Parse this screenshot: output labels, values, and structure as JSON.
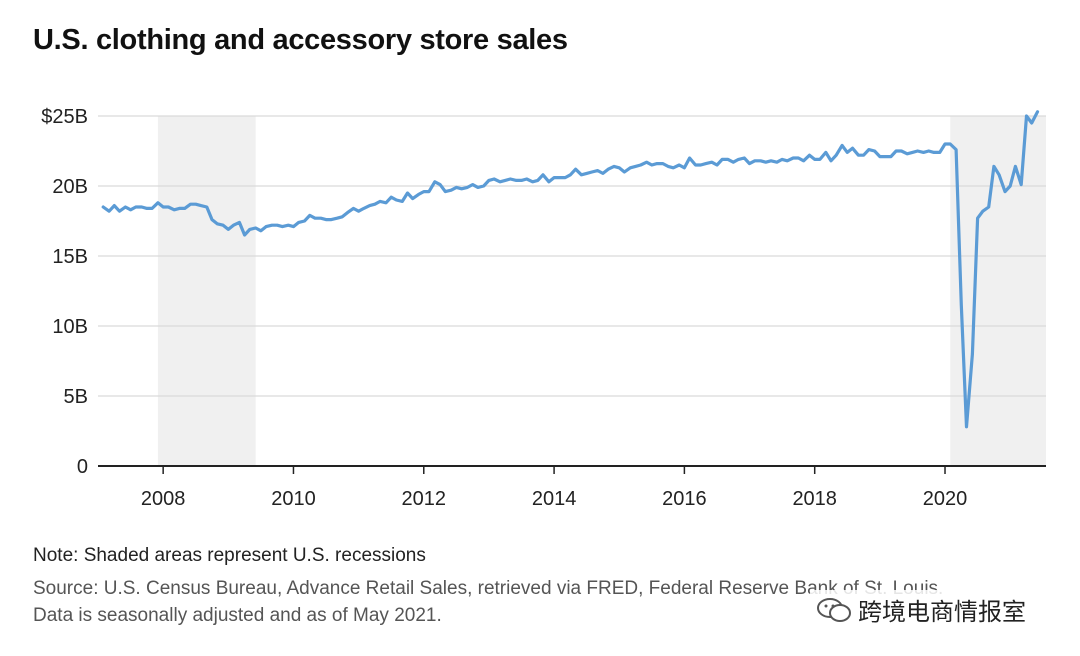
{
  "chart_data": {
    "type": "line",
    "title": "U.S. clothing and accessory store sales",
    "xlabel": "",
    "ylabel": "",
    "xlim": [
      2007.0,
      2021.55
    ],
    "ylim": [
      0,
      25
    ],
    "y_ticks": [
      0,
      5,
      10,
      15,
      20,
      25
    ],
    "y_tick_labels": [
      "0",
      "5B",
      "10B",
      "15B",
      "20B",
      "$25B"
    ],
    "x_ticks": [
      2008,
      2010,
      2012,
      2014,
      2016,
      2018,
      2020
    ],
    "x_tick_labels": [
      "2008",
      "2010",
      "2012",
      "2014",
      "2016",
      "2018",
      "2020"
    ],
    "recessions": [
      {
        "start": 2007.92,
        "end": 2009.42
      },
      {
        "start": 2020.08,
        "end": 2021.55
      }
    ],
    "series": [
      {
        "name": "Clothing and accessory store sales",
        "color": "#5b9bd5",
        "points": [
          [
            2007.08,
            18.5
          ],
          [
            2007.17,
            18.2
          ],
          [
            2007.25,
            18.6
          ],
          [
            2007.33,
            18.2
          ],
          [
            2007.42,
            18.5
          ],
          [
            2007.5,
            18.3
          ],
          [
            2007.58,
            18.5
          ],
          [
            2007.67,
            18.5
          ],
          [
            2007.75,
            18.4
          ],
          [
            2007.83,
            18.4
          ],
          [
            2007.92,
            18.8
          ],
          [
            2008.0,
            18.5
          ],
          [
            2008.08,
            18.5
          ],
          [
            2008.17,
            18.3
          ],
          [
            2008.25,
            18.4
          ],
          [
            2008.33,
            18.4
          ],
          [
            2008.42,
            18.7
          ],
          [
            2008.5,
            18.7
          ],
          [
            2008.58,
            18.6
          ],
          [
            2008.67,
            18.5
          ],
          [
            2008.75,
            17.6
          ],
          [
            2008.83,
            17.3
          ],
          [
            2008.92,
            17.2
          ],
          [
            2009.0,
            16.9
          ],
          [
            2009.08,
            17.2
          ],
          [
            2009.17,
            17.4
          ],
          [
            2009.25,
            16.5
          ],
          [
            2009.33,
            16.9
          ],
          [
            2009.42,
            17.0
          ],
          [
            2009.5,
            16.8
          ],
          [
            2009.58,
            17.1
          ],
          [
            2009.67,
            17.2
          ],
          [
            2009.75,
            17.2
          ],
          [
            2009.83,
            17.1
          ],
          [
            2009.92,
            17.2
          ],
          [
            2010.0,
            17.1
          ],
          [
            2010.08,
            17.4
          ],
          [
            2010.17,
            17.5
          ],
          [
            2010.25,
            17.9
          ],
          [
            2010.33,
            17.7
          ],
          [
            2010.42,
            17.7
          ],
          [
            2010.5,
            17.6
          ],
          [
            2010.58,
            17.6
          ],
          [
            2010.67,
            17.7
          ],
          [
            2010.75,
            17.8
          ],
          [
            2010.83,
            18.1
          ],
          [
            2010.92,
            18.4
          ],
          [
            2011.0,
            18.2
          ],
          [
            2011.08,
            18.4
          ],
          [
            2011.17,
            18.6
          ],
          [
            2011.25,
            18.7
          ],
          [
            2011.33,
            18.9
          ],
          [
            2011.42,
            18.8
          ],
          [
            2011.5,
            19.2
          ],
          [
            2011.58,
            19.0
          ],
          [
            2011.67,
            18.9
          ],
          [
            2011.75,
            19.5
          ],
          [
            2011.83,
            19.1
          ],
          [
            2011.92,
            19.4
          ],
          [
            2012.0,
            19.6
          ],
          [
            2012.08,
            19.6
          ],
          [
            2012.17,
            20.3
          ],
          [
            2012.25,
            20.1
          ],
          [
            2012.33,
            19.6
          ],
          [
            2012.42,
            19.7
          ],
          [
            2012.5,
            19.9
          ],
          [
            2012.58,
            19.8
          ],
          [
            2012.67,
            19.9
          ],
          [
            2012.75,
            20.1
          ],
          [
            2012.83,
            19.9
          ],
          [
            2012.92,
            20.0
          ],
          [
            2013.0,
            20.4
          ],
          [
            2013.08,
            20.5
          ],
          [
            2013.17,
            20.3
          ],
          [
            2013.25,
            20.4
          ],
          [
            2013.33,
            20.5
          ],
          [
            2013.42,
            20.4
          ],
          [
            2013.5,
            20.4
          ],
          [
            2013.58,
            20.5
          ],
          [
            2013.67,
            20.3
          ],
          [
            2013.75,
            20.4
          ],
          [
            2013.83,
            20.8
          ],
          [
            2013.92,
            20.3
          ],
          [
            2014.0,
            20.6
          ],
          [
            2014.08,
            20.6
          ],
          [
            2014.17,
            20.6
          ],
          [
            2014.25,
            20.8
          ],
          [
            2014.33,
            21.2
          ],
          [
            2014.42,
            20.8
          ],
          [
            2014.5,
            20.9
          ],
          [
            2014.58,
            21.0
          ],
          [
            2014.67,
            21.1
          ],
          [
            2014.75,
            20.9
          ],
          [
            2014.83,
            21.2
          ],
          [
            2014.92,
            21.4
          ],
          [
            2015.0,
            21.3
          ],
          [
            2015.08,
            21.0
          ],
          [
            2015.17,
            21.3
          ],
          [
            2015.25,
            21.4
          ],
          [
            2015.33,
            21.5
          ],
          [
            2015.42,
            21.7
          ],
          [
            2015.5,
            21.5
          ],
          [
            2015.58,
            21.6
          ],
          [
            2015.67,
            21.6
          ],
          [
            2015.75,
            21.4
          ],
          [
            2015.83,
            21.3
          ],
          [
            2015.92,
            21.5
          ],
          [
            2016.0,
            21.3
          ],
          [
            2016.08,
            22.0
          ],
          [
            2016.17,
            21.5
          ],
          [
            2016.25,
            21.5
          ],
          [
            2016.33,
            21.6
          ],
          [
            2016.42,
            21.7
          ],
          [
            2016.5,
            21.5
          ],
          [
            2016.58,
            21.9
          ],
          [
            2016.67,
            21.9
          ],
          [
            2016.75,
            21.7
          ],
          [
            2016.83,
            21.9
          ],
          [
            2016.92,
            22.0
          ],
          [
            2017.0,
            21.6
          ],
          [
            2017.08,
            21.8
          ],
          [
            2017.17,
            21.8
          ],
          [
            2017.25,
            21.7
          ],
          [
            2017.33,
            21.8
          ],
          [
            2017.42,
            21.7
          ],
          [
            2017.5,
            21.9
          ],
          [
            2017.58,
            21.8
          ],
          [
            2017.67,
            22.0
          ],
          [
            2017.75,
            22.0
          ],
          [
            2017.83,
            21.8
          ],
          [
            2017.92,
            22.2
          ],
          [
            2018.0,
            21.9
          ],
          [
            2018.08,
            21.9
          ],
          [
            2018.17,
            22.4
          ],
          [
            2018.25,
            21.8
          ],
          [
            2018.33,
            22.2
          ],
          [
            2018.42,
            22.9
          ],
          [
            2018.5,
            22.4
          ],
          [
            2018.58,
            22.7
          ],
          [
            2018.67,
            22.2
          ],
          [
            2018.75,
            22.2
          ],
          [
            2018.83,
            22.6
          ],
          [
            2018.92,
            22.5
          ],
          [
            2019.0,
            22.1
          ],
          [
            2019.08,
            22.1
          ],
          [
            2019.17,
            22.1
          ],
          [
            2019.25,
            22.5
          ],
          [
            2019.33,
            22.5
          ],
          [
            2019.42,
            22.3
          ],
          [
            2019.5,
            22.4
          ],
          [
            2019.58,
            22.5
          ],
          [
            2019.67,
            22.4
          ],
          [
            2019.75,
            22.5
          ],
          [
            2019.83,
            22.4
          ],
          [
            2019.92,
            22.4
          ],
          [
            2020.0,
            23.0
          ],
          [
            2020.08,
            23.0
          ],
          [
            2020.17,
            22.6
          ],
          [
            2020.25,
            11.5
          ],
          [
            2020.33,
            2.8
          ],
          [
            2020.42,
            8.0
          ],
          [
            2020.5,
            17.7
          ],
          [
            2020.58,
            18.2
          ],
          [
            2020.67,
            18.5
          ],
          [
            2020.75,
            21.4
          ],
          [
            2020.83,
            20.8
          ],
          [
            2020.92,
            19.6
          ],
          [
            2021.0,
            20.0
          ],
          [
            2021.08,
            21.4
          ],
          [
            2021.17,
            20.1
          ],
          [
            2021.25,
            25.0
          ],
          [
            2021.33,
            24.5
          ],
          [
            2021.42,
            25.3
          ]
        ]
      }
    ]
  },
  "page": {
    "title": "U.S. clothing and accessory store sales",
    "note": "Note: Shaded areas represent U.S. recessions",
    "source": "Source: U.S. Census Bureau, Advance Retail Sales, retrieved via FRED, Federal Reserve Bank of St. Louis. Data is seasonally adjusted and as of May 2021.",
    "watermark": "跨境电商情报室"
  },
  "colors": {
    "line": "#5b9bd5",
    "recession_shade": "#f0f0f0",
    "grid": "#d9d9d9",
    "axis": "#222222"
  },
  "icons": {
    "watermark_icon": "wechat-icon"
  }
}
